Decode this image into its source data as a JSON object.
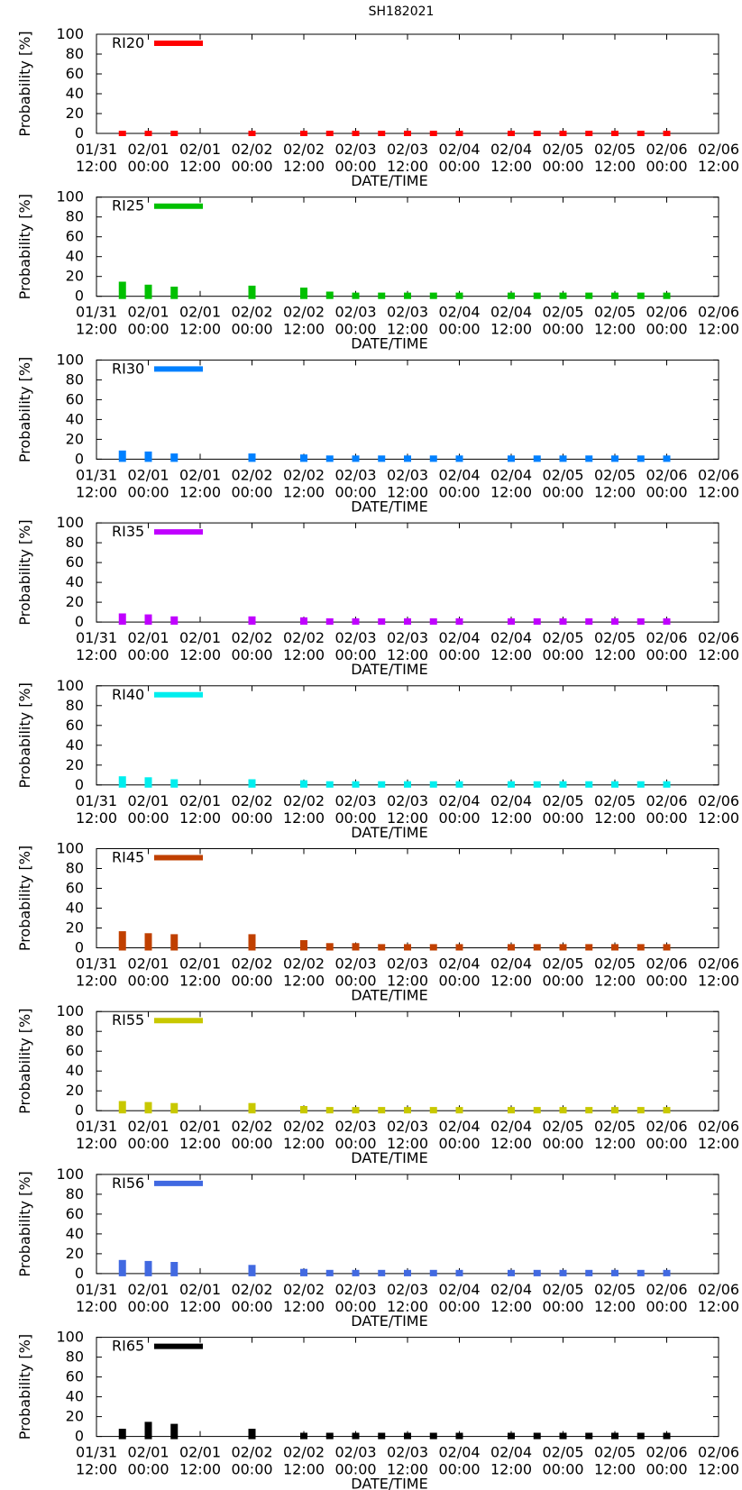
{
  "title": "SH182021",
  "chart_data": {
    "type": "bar",
    "title": "SH182021",
    "xlabel": "DATE/TIME",
    "ylabel": "Probability [%]",
    "ylim": [
      0,
      100
    ],
    "y_ticks": [
      "0",
      "20",
      "40",
      "60",
      "80",
      "100"
    ],
    "x_tick_labels": [
      [
        "01/31",
        "12:00"
      ],
      [
        "02/01",
        "00:00"
      ],
      [
        "02/01",
        "12:00"
      ],
      [
        "02/02",
        "00:00"
      ],
      [
        "02/02",
        "12:00"
      ],
      [
        "02/03",
        "00:00"
      ],
      [
        "02/03",
        "12:00"
      ],
      [
        "02/04",
        "00:00"
      ],
      [
        "02/04",
        "12:00"
      ],
      [
        "02/05",
        "00:00"
      ],
      [
        "02/05",
        "12:00"
      ],
      [
        "02/06",
        "00:00"
      ],
      [
        "02/06",
        "12:00"
      ]
    ],
    "x_hours": [
      6,
      12,
      18,
      36,
      48,
      54,
      60,
      66,
      72,
      78,
      84,
      96,
      102,
      108,
      114,
      120,
      126,
      132
    ],
    "panels": [
      {
        "name": "RI20",
        "color": "#ff0000",
        "values": [
          0,
          0,
          0,
          0,
          0,
          0,
          0,
          0,
          0,
          0,
          0,
          0,
          0,
          0,
          0,
          0,
          0,
          0
        ]
      },
      {
        "name": "RI25",
        "color": "#00c000",
        "values": [
          12,
          9,
          7,
          8,
          6,
          2,
          1,
          1,
          1,
          1,
          1,
          1,
          1,
          1,
          1,
          1,
          1,
          1
        ]
      },
      {
        "name": "RI30",
        "color": "#0080ff",
        "values": [
          6,
          5,
          3,
          3,
          2,
          1,
          1,
          1,
          1,
          1,
          1,
          1,
          1,
          1,
          1,
          1,
          1,
          1
        ]
      },
      {
        "name": "RI35",
        "color": "#c000ff",
        "values": [
          6,
          5,
          3,
          3,
          2,
          1,
          1,
          1,
          1,
          1,
          1,
          1,
          1,
          1,
          1,
          1,
          1,
          1
        ]
      },
      {
        "name": "RI40",
        "color": "#00eeee",
        "values": [
          6,
          5,
          3,
          3,
          2,
          1,
          1,
          1,
          1,
          1,
          1,
          1,
          1,
          1,
          1,
          1,
          1,
          1
        ]
      },
      {
        "name": "RI45",
        "color": "#c04000",
        "values": [
          14,
          12,
          11,
          11,
          5,
          2,
          2,
          1,
          1,
          1,
          1,
          1,
          1,
          1,
          1,
          1,
          1,
          1
        ]
      },
      {
        "name": "RI55",
        "color": "#c8c800",
        "values": [
          7,
          6,
          5,
          5,
          2,
          1,
          1,
          1,
          1,
          1,
          1,
          1,
          1,
          1,
          1,
          1,
          1,
          1
        ]
      },
      {
        "name": "RI56",
        "color": "#4169e1",
        "values": [
          11,
          10,
          9,
          6,
          2,
          1,
          1,
          1,
          1,
          1,
          1,
          1,
          1,
          1,
          1,
          1,
          1,
          1
        ]
      },
      {
        "name": "RI65",
        "color": "#000000",
        "values": [
          5,
          12,
          10,
          5,
          1,
          1,
          1,
          1,
          1,
          1,
          1,
          1,
          1,
          1,
          1,
          1,
          1,
          1
        ]
      }
    ]
  }
}
